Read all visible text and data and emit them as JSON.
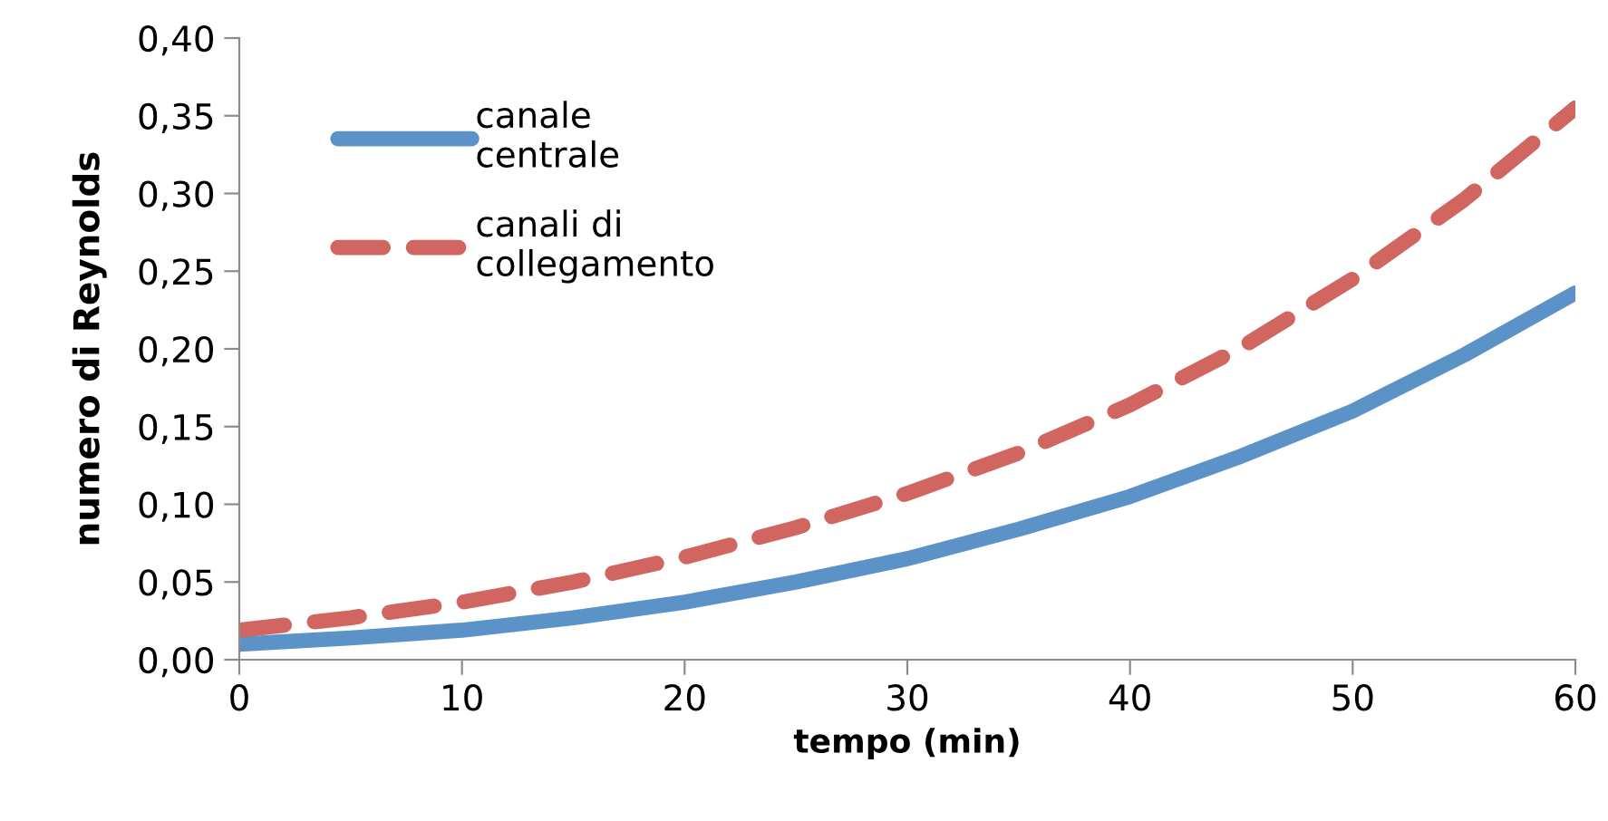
{
  "chart_data": {
    "type": "line",
    "xlabel": "tempo (min)",
    "ylabel": "numero di Reynolds",
    "x": [
      0,
      5,
      10,
      15,
      20,
      25,
      30,
      35,
      40,
      45,
      50,
      55,
      60
    ],
    "series": [
      {
        "name": "canale\ncentrale",
        "color": "#5b92c8",
        "line_style": "solid",
        "values": [
          0.01,
          0.014,
          0.019,
          0.027,
          0.037,
          0.05,
          0.065,
          0.084,
          0.105,
          0.131,
          0.16,
          0.196,
          0.236
        ]
      },
      {
        "name": "canali di\ncollegamento",
        "color": "#d0665f",
        "line_style": "dashed",
        "values": [
          0.019,
          0.027,
          0.037,
          0.05,
          0.066,
          0.085,
          0.107,
          0.133,
          0.164,
          0.201,
          0.245,
          0.296,
          0.355
        ]
      }
    ],
    "xlim": [
      0,
      60
    ],
    "xticks": [
      0,
      10,
      20,
      30,
      40,
      50,
      60
    ],
    "ylim": [
      0,
      0.4
    ],
    "yticks": [
      {
        "value": 0,
        "label": "0,00"
      },
      {
        "value": 0.05,
        "label": "0,05"
      },
      {
        "value": 0.1,
        "label": "0,10"
      },
      {
        "value": 0.15,
        "label": "0,15"
      },
      {
        "value": 0.2,
        "label": "0,20"
      },
      {
        "value": 0.25,
        "label": "0,25"
      },
      {
        "value": 0.3,
        "label": "0,30"
      },
      {
        "value": 0.35,
        "label": "0,35"
      },
      {
        "value": 0.4,
        "label": "0,40"
      }
    ],
    "grid": false,
    "legend": "top left",
    "marker": "none"
  }
}
